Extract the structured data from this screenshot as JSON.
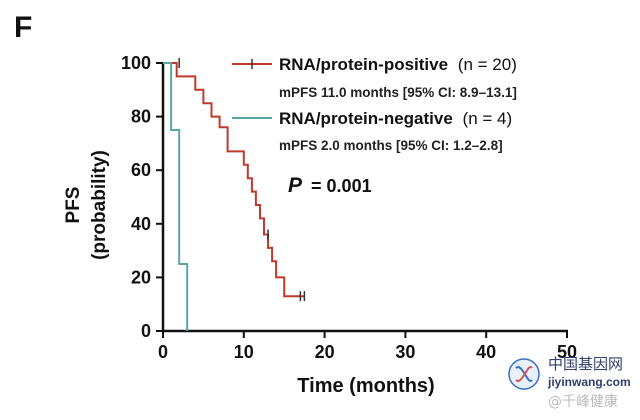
{
  "panel_label": "F",
  "watermark": {
    "logo_text": "中国基因网",
    "url": "jiyinwang.com",
    "sub": "@千峰健康"
  },
  "chart_data": {
    "type": "line",
    "step": true,
    "xlabel": "Time (months)",
    "ylabel_line1": "PFS",
    "ylabel_line2": "(probability)",
    "xlim": [
      0,
      50
    ],
    "ylim": [
      0,
      100
    ],
    "x_ticks": [
      0,
      10,
      20,
      30,
      40,
      50
    ],
    "y_ticks": [
      0,
      20,
      40,
      60,
      80,
      100
    ],
    "grid": false,
    "legend_position": "top-right",
    "annotation": {
      "p_symbol": "P",
      "p_value": "= 0.001"
    },
    "series": [
      {
        "name": "RNA/protein-positive",
        "n_label": "(n = 20)",
        "stats": "mPFS 11.0 months [95% CI: 8.9–13.1]",
        "color": "#c0392b",
        "points": [
          [
            0,
            100
          ],
          [
            1.7,
            100
          ],
          [
            1.7,
            95
          ],
          [
            4,
            95
          ],
          [
            4,
            90
          ],
          [
            5,
            90
          ],
          [
            5,
            85
          ],
          [
            6,
            85
          ],
          [
            6,
            80
          ],
          [
            7,
            80
          ],
          [
            7,
            76
          ],
          [
            8,
            76
          ],
          [
            8,
            67
          ],
          [
            10,
            67
          ],
          [
            10,
            62
          ],
          [
            10.5,
            62
          ],
          [
            10.5,
            57
          ],
          [
            11,
            57
          ],
          [
            11,
            52
          ],
          [
            11.5,
            52
          ],
          [
            11.5,
            47
          ],
          [
            12,
            47
          ],
          [
            12,
            42
          ],
          [
            12.5,
            42
          ],
          [
            12.5,
            36
          ],
          [
            13,
            36
          ],
          [
            13,
            31
          ],
          [
            13.5,
            31
          ],
          [
            13.5,
            26
          ],
          [
            14,
            26
          ],
          [
            14,
            20
          ],
          [
            15,
            20
          ],
          [
            15,
            13
          ],
          [
            17.5,
            13
          ]
        ],
        "censor": [
          [
            2,
            100
          ],
          [
            13,
            36
          ],
          [
            17,
            13
          ],
          [
            17.5,
            13
          ]
        ]
      },
      {
        "name": "RNA/protein-negative",
        "n_label": "(n = 4)",
        "stats": "mPFS 2.0 months [95% CI: 1.2–2.8]",
        "color": "#5aa5a8",
        "points": [
          [
            0,
            100
          ],
          [
            1,
            100
          ],
          [
            1,
            75
          ],
          [
            2,
            75
          ],
          [
            2,
            25
          ],
          [
            3,
            25
          ],
          [
            3,
            0
          ]
        ],
        "censor": []
      }
    ]
  }
}
